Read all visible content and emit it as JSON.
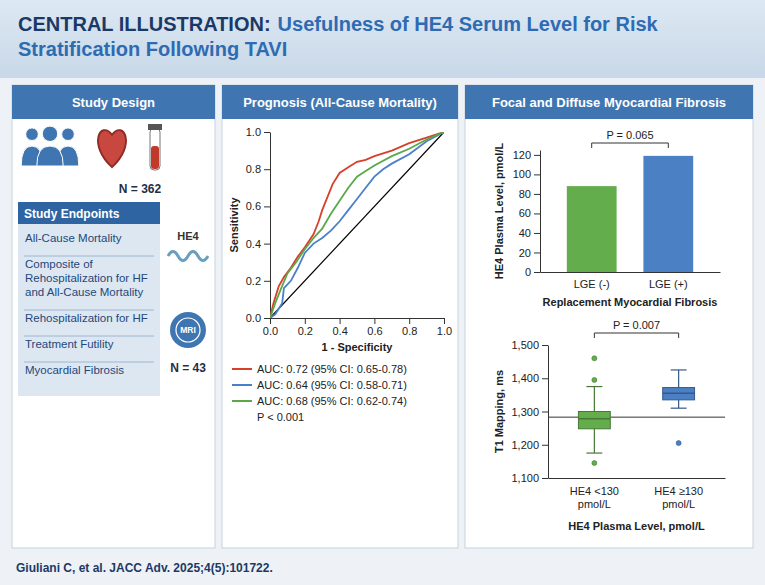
{
  "header": {
    "label": "CENTRAL ILLUSTRATION:",
    "title": "Usefulness of HE4 Serum Level for Risk Stratification Following TAVI"
  },
  "panel_titles": [
    "Study Design",
    "Prognosis (All-Cause Mortality)",
    "Focal and Diffuse Myocardial Fibrosis"
  ],
  "study_design": {
    "n_total": "N = 362",
    "biomarker": "HE4",
    "imaging": "MRI",
    "n_imaging": "N = 43",
    "endpoints_title": "Study Endpoints",
    "endpoints": [
      "All-Cause Mortality",
      "Composite of Rehospitalization for HF and All-Cause Mortality",
      "Rehospitalization for HF",
      "Treatment Futility",
      "Myocardial Fibrosis"
    ]
  },
  "chart_data": [
    {
      "type": "line",
      "x_label": "1 - Specificity",
      "y_label": "Sensitivity",
      "xlim": [
        0,
        1
      ],
      "ylim": [
        0,
        1
      ],
      "xticks": [
        {
          "value": 0,
          "label": "0.0"
        },
        0.2,
        0.4,
        0.6,
        0.8,
        {
          "value": 1,
          "label": "1.0"
        }
      ],
      "yticks": [
        {
          "value": 0,
          "label": "0.0"
        },
        0.2,
        0.4,
        0.6,
        0.8,
        {
          "value": 1,
          "label": "1.0"
        }
      ],
      "grid": false,
      "legend": "bottom",
      "series": [
        {
          "name": "AUC: 0.72 (95% CI: 0.65-0.78)",
          "color": "#d6402b",
          "x": [
            0,
            0.02,
            0.05,
            0.08,
            0.12,
            0.16,
            0.2,
            0.25,
            0.28,
            0.3,
            0.33,
            0.36,
            0.4,
            0.45,
            0.5,
            0.55,
            0.6,
            0.7,
            0.8,
            0.9,
            1
          ],
          "values": [
            0,
            0.08,
            0.17,
            0.22,
            0.27,
            0.33,
            0.38,
            0.45,
            0.52,
            0.58,
            0.65,
            0.72,
            0.78,
            0.81,
            0.84,
            0.85,
            0.87,
            0.9,
            0.94,
            0.97,
            1
          ]
        },
        {
          "name": "AUC: 0.64 (95% CI: 0.58-0.71)",
          "color": "#4a7fc9",
          "x": [
            0,
            0.03,
            0.07,
            0.08,
            0.12,
            0.16,
            0.2,
            0.25,
            0.3,
            0.35,
            0.4,
            0.45,
            0.5,
            0.55,
            0.6,
            0.65,
            0.7,
            0.8,
            0.9,
            1
          ],
          "values": [
            0,
            0.02,
            0.08,
            0.16,
            0.2,
            0.27,
            0.35,
            0.4,
            0.43,
            0.47,
            0.52,
            0.58,
            0.64,
            0.7,
            0.76,
            0.8,
            0.83,
            0.88,
            0.95,
            1
          ]
        },
        {
          "name": "AUC: 0.68 (95% CI: 0.62-0.74)",
          "color": "#5aa84a",
          "x": [
            0,
            0.03,
            0.06,
            0.1,
            0.15,
            0.2,
            0.25,
            0.3,
            0.35,
            0.4,
            0.45,
            0.5,
            0.55,
            0.6,
            0.7,
            0.8,
            0.9,
            1
          ],
          "values": [
            0,
            0.08,
            0.15,
            0.24,
            0.3,
            0.37,
            0.43,
            0.48,
            0.56,
            0.63,
            0.7,
            0.76,
            0.79,
            0.82,
            0.87,
            0.91,
            0.96,
            1
          ]
        }
      ],
      "reference_line": {
        "x": [
          0,
          1
        ],
        "values": [
          0,
          1
        ],
        "color": "#000000"
      },
      "annotations": [
        "P < 0.001"
      ]
    },
    {
      "type": "bar",
      "y_label": "HE4 Plasma Level, pmol/L",
      "x_label": "Replacement Myocardial Fibrosis",
      "categories": [
        "LGE (-)",
        "LGE (+)"
      ],
      "values": [
        88,
        119
      ],
      "colors": [
        "#63ad4c",
        "#4b80c4"
      ],
      "ylim": [
        0,
        125
      ],
      "yticks": [
        0,
        20,
        40,
        60,
        80,
        100,
        120
      ],
      "grid": false,
      "annotations": [
        "P = 0.065"
      ]
    },
    {
      "type": "box",
      "y_label": "T1 Mapping, ms",
      "x_label": "HE4 Plasma Level, pmol/L",
      "categories": [
        "HE4 <130 pmol/L",
        "HE4 ≥130 pmol/L"
      ],
      "colors": [
        "#63ad4c",
        "#4b80c4"
      ],
      "boxes": [
        {
          "whisker_low": 1175,
          "q1": 1248,
          "median": 1278,
          "q3": 1300,
          "whisker_high": 1375,
          "outliers": [
            1145,
            1395,
            1460
          ]
        },
        {
          "whisker_low": 1310,
          "q1": 1335,
          "median": 1355,
          "q3": 1372,
          "whisker_high": 1425,
          "outliers": [
            1205
          ]
        }
      ],
      "ylim": [
        1100,
        1500
      ],
      "yticks": [
        {
          "value": 1100,
          "label": "1,100"
        },
        {
          "value": 1200,
          "label": "1,200"
        },
        {
          "value": 1300,
          "label": "1,300"
        },
        {
          "value": 1400,
          "label": "1,400"
        },
        {
          "value": 1500,
          "label": "1,500"
        }
      ],
      "reference_line": 1283,
      "grid": false,
      "annotations": [
        "P = 0.007"
      ]
    }
  ],
  "footer": "Giuliani C, et al. JACC Adv. 2025;4(5):101722."
}
